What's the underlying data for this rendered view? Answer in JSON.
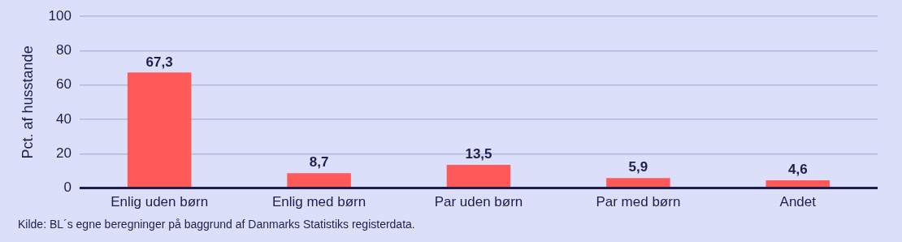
{
  "chart_data": {
    "type": "bar",
    "ylabel": "Pct. af husstande",
    "categories": [
      "Enlig uden børn",
      "Enlig med børn",
      "Par uden børn",
      "Par med børn",
      "Andet"
    ],
    "values": [
      67.3,
      8.7,
      13.5,
      5.9,
      4.6
    ],
    "value_labels": [
      "67,3",
      "8,7",
      "13,5",
      "5,9",
      "4,6"
    ],
    "color": "#ff5a5a",
    "ylim": [
      0,
      100
    ],
    "yticks": [
      0,
      20,
      40,
      60,
      80,
      100
    ],
    "grid": "y",
    "legend": false,
    "annotations": [
      "Kilde: BL´s egne beregninger på baggrund af Danmarks Statistiks registerdata."
    ]
  }
}
